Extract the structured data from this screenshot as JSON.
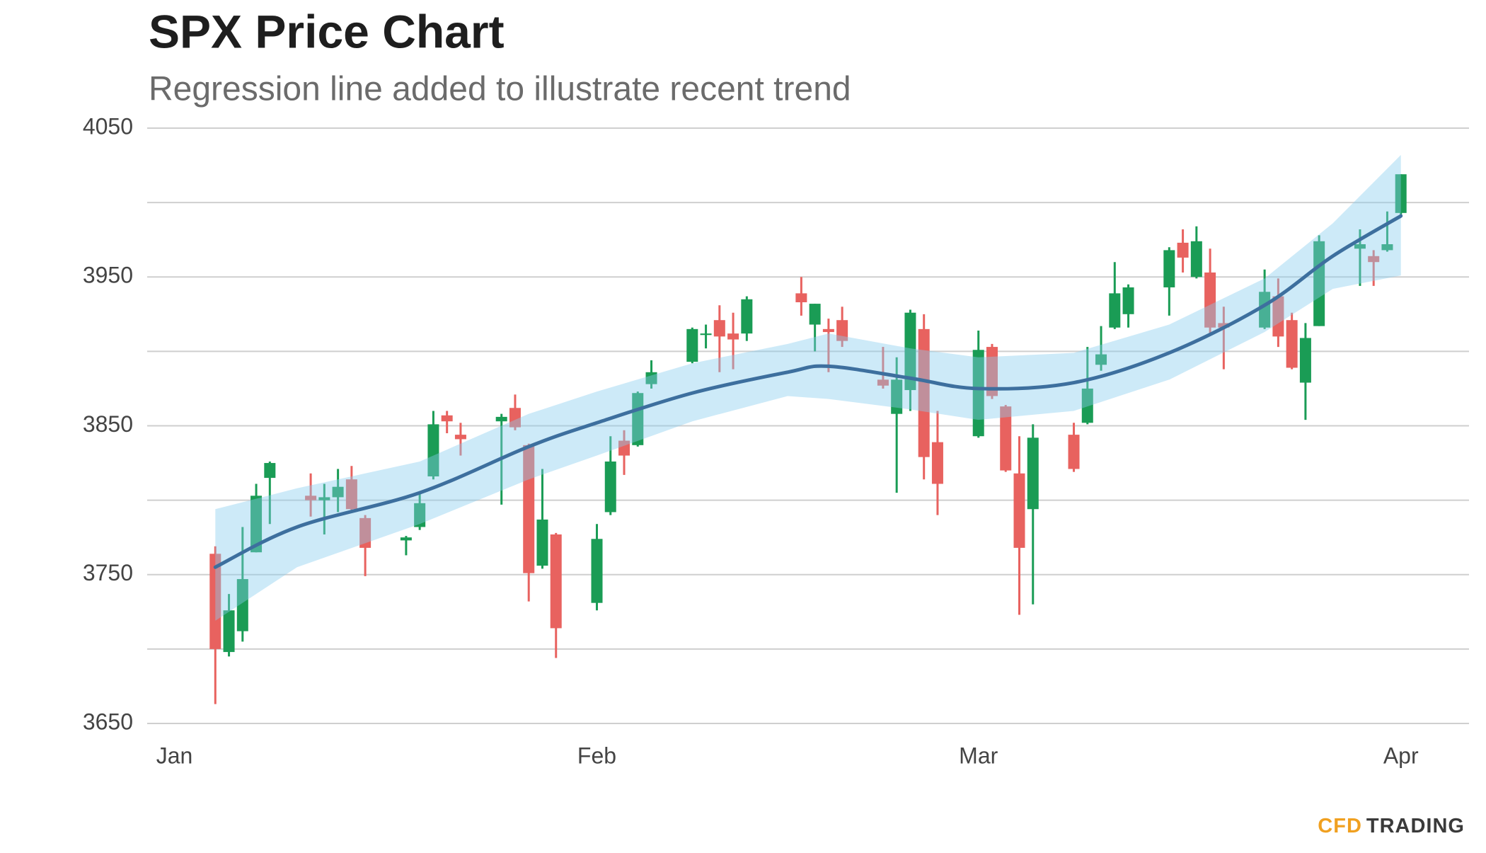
{
  "chart_data": {
    "type": "candlestick",
    "title": "SPX Price Chart",
    "subtitle": "Regression line added to illustrate recent trend",
    "x": [
      3,
      4,
      5,
      6,
      7,
      10,
      11,
      12,
      13,
      14,
      17,
      18,
      19,
      20,
      21,
      24,
      25,
      26,
      27,
      28,
      31,
      32,
      33,
      34,
      35,
      38,
      39,
      40,
      41,
      42,
      46,
      47,
      48,
      49,
      52,
      53,
      54,
      55,
      56,
      59,
      60,
      61,
      62,
      63,
      66,
      67,
      68,
      69,
      70,
      73,
      74,
      75,
      76,
      77,
      80,
      81,
      82,
      83,
      84,
      87,
      88,
      89,
      90
    ],
    "open": [
      3764,
      3698,
      3712,
      3765,
      3815,
      3803,
      3800,
      3802,
      3814,
      3788,
      3773,
      3782,
      3816,
      3857,
      3844,
      3853,
      3862,
      3837,
      3756,
      3777,
      3731,
      3792,
      3840,
      3837,
      3878,
      3893,
      3911,
      3921,
      3912,
      3912,
      3939,
      3918,
      3915,
      3921,
      3881,
      3858,
      3874,
      3915,
      3839,
      3843,
      3903,
      3863,
      3818,
      3794,
      3844,
      3852,
      3891,
      3916,
      3925,
      3943,
      3973,
      3950,
      3953,
      3919,
      3916,
      3937,
      3921,
      3879,
      3917,
      3969,
      3964,
      3968,
      3993
    ],
    "high": [
      3769,
      3737,
      3782,
      3811,
      3826,
      3818,
      3811,
      3821,
      3823,
      3790,
      3776,
      3804,
      3860,
      3860,
      3852,
      3858,
      3871,
      3838,
      3821,
      3778,
      3784,
      3843,
      3847,
      3873,
      3894,
      3916,
      3918,
      3931,
      3926,
      3937,
      3950,
      3932,
      3922,
      3930,
      3903,
      3896,
      3928,
      3925,
      3860,
      3914,
      3905,
      3864,
      3843,
      3851,
      3852,
      3903,
      3917,
      3960,
      3945,
      3970,
      3982,
      3984,
      3969,
      3930,
      3955,
      3949,
      3926,
      3919,
      3978,
      3982,
      3968,
      3994,
      4019
    ],
    "low": [
      3663,
      3695,
      3705,
      3765,
      3784,
      3789,
      3777,
      3792,
      3792,
      3749,
      3763,
      3780,
      3814,
      3845,
      3830,
      3797,
      3847,
      3732,
      3754,
      3694,
      3726,
      3790,
      3817,
      3836,
      3875,
      3892,
      3902,
      3886,
      3888,
      3907,
      3924,
      3900,
      3886,
      3903,
      3875,
      3805,
      3860,
      3814,
      3790,
      3842,
      3868,
      3819,
      3723,
      3730,
      3819,
      3851,
      3887,
      3915,
      3916,
      3924,
      3953,
      3949,
      3911,
      3888,
      3915,
      3903,
      3888,
      3854,
      3917,
      3944,
      3944,
      3967,
      3992
    ],
    "close": [
      3700,
      3726,
      3747,
      3803,
      3825,
      3800,
      3802,
      3809,
      3794,
      3768,
      3775,
      3798,
      3851,
      3853,
      3841,
      3856,
      3849,
      3751,
      3787,
      3714,
      3774,
      3826,
      3830,
      3872,
      3886,
      3915,
      3912,
      3910,
      3908,
      3935,
      3933,
      3932,
      3913,
      3907,
      3877,
      3881,
      3926,
      3829,
      3811,
      3901,
      3870,
      3820,
      3768,
      3842,
      3821,
      3875,
      3898,
      3939,
      3943,
      3968,
      3963,
      3974,
      3916,
      3916,
      3940,
      3910,
      3889,
      3909,
      3974,
      3972,
      3960,
      3972,
      4019
    ],
    "up_color": "#1a9c55",
    "down_color": "#e8625f",
    "regression": {
      "x": [
        3,
        9,
        18,
        26,
        31,
        38,
        45,
        48,
        54,
        59,
        66,
        73,
        80,
        85,
        90
      ],
      "values": [
        3755,
        3782,
        3805,
        3836,
        3852,
        3872,
        3886,
        3890,
        3882,
        3875,
        3879,
        3899,
        3931,
        3964,
        3991
      ],
      "upper": [
        3794,
        3808,
        3826,
        3858,
        3873,
        3892,
        3905,
        3912,
        3902,
        3896,
        3899,
        3918,
        3949,
        3986,
        4032
      ],
      "lower": [
        3719,
        3755,
        3784,
        3814,
        3830,
        3853,
        3870,
        3868,
        3861,
        3854,
        3860,
        3881,
        3913,
        3942,
        3951
      ],
      "color": "#3d6f9e",
      "band_color": "#87cdee"
    },
    "xlim": [
      -2,
      95
    ],
    "xticks": [
      {
        "value": 0,
        "label": "Jan"
      },
      {
        "value": 31,
        "label": "Feb"
      },
      {
        "value": 59,
        "label": "Mar"
      },
      {
        "value": 90,
        "label": "Apr"
      }
    ],
    "ylim": [
      3650,
      4050
    ],
    "yticks": [
      3650,
      3750,
      3850,
      3950,
      4050
    ],
    "minor_yticks": [
      3700,
      3800,
      3900,
      4000
    ],
    "grid": true,
    "logo": [
      "CFD",
      "TRADING"
    ]
  }
}
